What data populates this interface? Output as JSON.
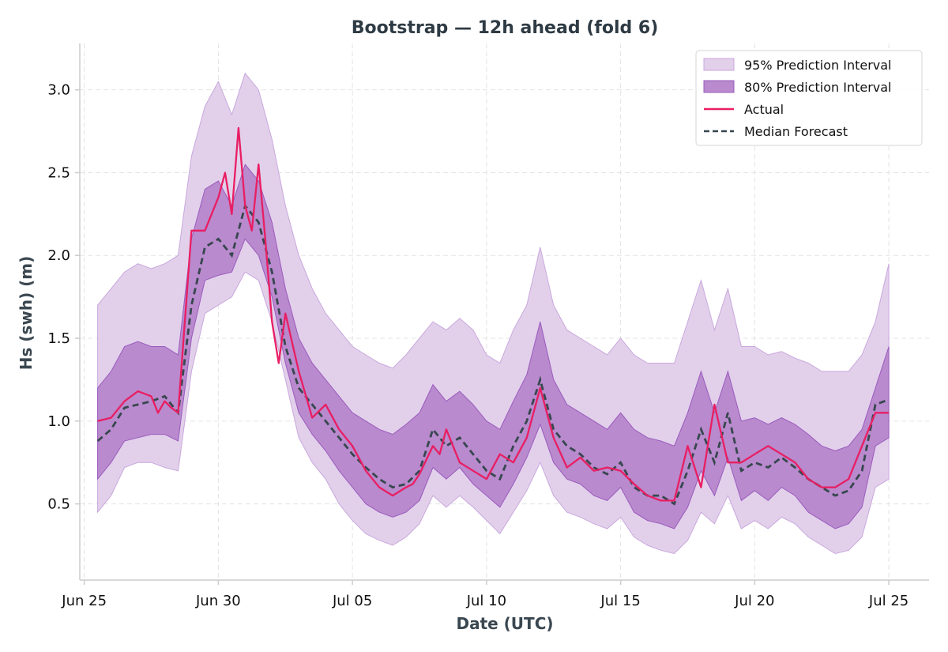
{
  "chart_data": {
    "type": "line",
    "title": "Bootstrap — 12h ahead (fold 6)",
    "xlabel": "Date (UTC)",
    "ylabel": "Hs (swh) (m)",
    "x_ticks": [
      {
        "date": "2025-06-25",
        "label": "Jun 25"
      },
      {
        "date": "2025-06-30",
        "label": "Jun 30"
      },
      {
        "date": "2025-07-05",
        "label": "Jul 05"
      },
      {
        "date": "2025-07-10",
        "label": "Jul 10"
      },
      {
        "date": "2025-07-15",
        "label": "Jul 15"
      },
      {
        "date": "2025-07-20",
        "label": "Jul 20"
      },
      {
        "date": "2025-07-25",
        "label": "Jul 25"
      }
    ],
    "y_ticks": [
      {
        "value": 0.5,
        "label": "0.5"
      },
      {
        "value": 1.0,
        "label": "1.0"
      },
      {
        "value": 1.5,
        "label": "1.5"
      },
      {
        "value": 2.0,
        "label": "2.0"
      },
      {
        "value": 2.5,
        "label": "2.5"
      },
      {
        "value": 3.0,
        "label": "3.0"
      }
    ],
    "xlim": [
      "2025-06-24T20:00",
      "2025-07-26T12:00"
    ],
    "ylim": [
      0.04,
      3.28
    ],
    "grid": true,
    "legend_position": "top-right",
    "colors": {
      "pi95_fill": "#e2d0eb",
      "pi95_edge": "#c9a7dd",
      "pi80_fill": "#b98acd",
      "pi80_edge": "#9a5bbd",
      "actual": "#e91e63",
      "median": "#37474f"
    },
    "legend": [
      {
        "key": "pi95",
        "label": "95% Prediction Interval"
      },
      {
        "key": "pi80",
        "label": "80% Prediction Interval"
      },
      {
        "key": "actual",
        "label": "Actual"
      },
      {
        "key": "median",
        "label": "Median Forecast"
      }
    ],
    "series": [
      {
        "name": "Actual",
        "x": [
          "2025-06-25T12:00",
          "2025-06-26T00:00",
          "2025-06-26T12:00",
          "2025-06-27T00:00",
          "2025-06-27T12:00",
          "2025-06-27T18:00",
          "2025-06-28T00:00",
          "2025-06-28T06:00",
          "2025-06-28T12:00",
          "2025-06-29T00:00",
          "2025-06-29T12:00",
          "2025-06-30T00:00",
          "2025-06-30T06:00",
          "2025-06-30T12:00",
          "2025-06-30T18:00",
          "2025-07-01T00:00",
          "2025-07-01T06:00",
          "2025-07-01T12:00",
          "2025-07-01T18:00",
          "2025-07-02T00:00",
          "2025-07-02T06:00",
          "2025-07-02T12:00",
          "2025-07-03T00:00",
          "2025-07-03T12:00",
          "2025-07-04T00:00",
          "2025-07-04T12:00",
          "2025-07-05T00:00",
          "2025-07-05T12:00",
          "2025-07-06T00:00",
          "2025-07-06T12:00",
          "2025-07-07T00:00",
          "2025-07-07T06:00",
          "2025-07-07T12:00",
          "2025-07-08T00:00",
          "2025-07-08T06:00",
          "2025-07-08T12:00",
          "2025-07-09T00:00",
          "2025-07-09T12:00",
          "2025-07-10T00:00",
          "2025-07-10T12:00",
          "2025-07-11T00:00",
          "2025-07-11T12:00",
          "2025-07-12T00:00",
          "2025-07-12T12:00",
          "2025-07-13T00:00",
          "2025-07-13T12:00",
          "2025-07-14T00:00",
          "2025-07-14T12:00",
          "2025-07-15T00:00",
          "2025-07-15T12:00",
          "2025-07-16T00:00",
          "2025-07-16T12:00",
          "2025-07-17T00:00",
          "2025-07-17T12:00",
          "2025-07-18T00:00",
          "2025-07-18T12:00",
          "2025-07-19T00:00",
          "2025-07-19T12:00",
          "2025-07-20T00:00",
          "2025-07-20T12:00",
          "2025-07-21T00:00",
          "2025-07-21T12:00",
          "2025-07-22T00:00",
          "2025-07-22T12:00",
          "2025-07-23T00:00",
          "2025-07-23T12:00",
          "2025-07-24T00:00",
          "2025-07-24T12:00",
          "2025-07-25T00:00"
        ],
        "values": [
          1.0,
          1.02,
          1.12,
          1.18,
          1.15,
          1.05,
          1.12,
          1.08,
          1.05,
          2.15,
          2.15,
          2.35,
          2.5,
          2.25,
          2.77,
          2.3,
          2.15,
          2.55,
          2.1,
          1.6,
          1.35,
          1.65,
          1.3,
          1.02,
          1.1,
          0.95,
          0.85,
          0.7,
          0.6,
          0.55,
          0.6,
          0.62,
          0.68,
          0.85,
          0.8,
          0.95,
          0.75,
          0.7,
          0.65,
          0.8,
          0.75,
          0.9,
          1.2,
          0.9,
          0.72,
          0.78,
          0.7,
          0.72,
          0.7,
          0.62,
          0.55,
          0.52,
          0.52,
          0.85,
          0.6,
          1.1,
          0.75,
          0.75,
          0.8,
          0.85,
          0.8,
          0.75,
          0.65,
          0.6,
          0.6,
          0.65,
          0.85,
          1.05,
          1.05
        ]
      },
      {
        "name": "Median Forecast",
        "x": [
          "2025-06-25T12:00",
          "2025-06-26T00:00",
          "2025-06-26T12:00",
          "2025-06-27T00:00",
          "2025-06-27T12:00",
          "2025-06-28T00:00",
          "2025-06-28T12:00",
          "2025-06-29T00:00",
          "2025-06-29T12:00",
          "2025-06-30T00:00",
          "2025-06-30T12:00",
          "2025-07-01T00:00",
          "2025-07-01T12:00",
          "2025-07-02T00:00",
          "2025-07-02T12:00",
          "2025-07-03T00:00",
          "2025-07-03T12:00",
          "2025-07-04T00:00",
          "2025-07-04T12:00",
          "2025-07-05T00:00",
          "2025-07-05T12:00",
          "2025-07-06T00:00",
          "2025-07-06T12:00",
          "2025-07-07T00:00",
          "2025-07-07T12:00",
          "2025-07-08T00:00",
          "2025-07-08T12:00",
          "2025-07-09T00:00",
          "2025-07-09T12:00",
          "2025-07-10T00:00",
          "2025-07-10T12:00",
          "2025-07-11T00:00",
          "2025-07-11T12:00",
          "2025-07-12T00:00",
          "2025-07-12T12:00",
          "2025-07-13T00:00",
          "2025-07-13T12:00",
          "2025-07-14T00:00",
          "2025-07-14T12:00",
          "2025-07-15T00:00",
          "2025-07-15T12:00",
          "2025-07-16T00:00",
          "2025-07-16T12:00",
          "2025-07-17T00:00",
          "2025-07-17T12:00",
          "2025-07-18T00:00",
          "2025-07-18T12:00",
          "2025-07-19T00:00",
          "2025-07-19T12:00",
          "2025-07-20T00:00",
          "2025-07-20T12:00",
          "2025-07-21T00:00",
          "2025-07-21T12:00",
          "2025-07-22T00:00",
          "2025-07-22T12:00",
          "2025-07-23T00:00",
          "2025-07-23T12:00",
          "2025-07-24T00:00",
          "2025-07-24T12:00",
          "2025-07-25T00:00"
        ],
        "values": [
          0.88,
          0.95,
          1.08,
          1.1,
          1.12,
          1.15,
          1.05,
          1.7,
          2.05,
          2.1,
          2.0,
          2.3,
          2.2,
          1.9,
          1.45,
          1.2,
          1.1,
          1.0,
          0.9,
          0.8,
          0.72,
          0.65,
          0.6,
          0.62,
          0.7,
          0.95,
          0.85,
          0.9,
          0.8,
          0.7,
          0.65,
          0.85,
          1.0,
          1.25,
          0.95,
          0.85,
          0.8,
          0.72,
          0.68,
          0.75,
          0.6,
          0.55,
          0.55,
          0.5,
          0.7,
          0.95,
          0.75,
          1.05,
          0.7,
          0.75,
          0.72,
          0.78,
          0.72,
          0.65,
          0.6,
          0.55,
          0.58,
          0.7,
          1.1,
          1.13
        ]
      }
    ],
    "intervals": [
      {
        "name": "95% Prediction Interval",
        "x": [
          "2025-06-25T12:00",
          "2025-06-26T00:00",
          "2025-06-26T12:00",
          "2025-06-27T00:00",
          "2025-06-27T12:00",
          "2025-06-28T00:00",
          "2025-06-28T12:00",
          "2025-06-29T00:00",
          "2025-06-29T12:00",
          "2025-06-30T00:00",
          "2025-06-30T12:00",
          "2025-07-01T00:00",
          "2025-07-01T12:00",
          "2025-07-02T00:00",
          "2025-07-02T12:00",
          "2025-07-03T00:00",
          "2025-07-03T12:00",
          "2025-07-04T00:00",
          "2025-07-04T12:00",
          "2025-07-05T00:00",
          "2025-07-05T12:00",
          "2025-07-06T00:00",
          "2025-07-06T12:00",
          "2025-07-07T00:00",
          "2025-07-07T12:00",
          "2025-07-08T00:00",
          "2025-07-08T12:00",
          "2025-07-09T00:00",
          "2025-07-09T12:00",
          "2025-07-10T00:00",
          "2025-07-10T12:00",
          "2025-07-11T00:00",
          "2025-07-11T12:00",
          "2025-07-12T00:00",
          "2025-07-12T12:00",
          "2025-07-13T00:00",
          "2025-07-13T12:00",
          "2025-07-14T00:00",
          "2025-07-14T12:00",
          "2025-07-15T00:00",
          "2025-07-15T12:00",
          "2025-07-16T00:00",
          "2025-07-16T12:00",
          "2025-07-17T00:00",
          "2025-07-17T12:00",
          "2025-07-18T00:00",
          "2025-07-18T12:00",
          "2025-07-19T00:00",
          "2025-07-19T12:00",
          "2025-07-20T00:00",
          "2025-07-20T12:00",
          "2025-07-21T00:00",
          "2025-07-21T12:00",
          "2025-07-22T00:00",
          "2025-07-22T12:00",
          "2025-07-23T00:00",
          "2025-07-23T12:00",
          "2025-07-24T00:00",
          "2025-07-24T12:00",
          "2025-07-25T00:00"
        ],
        "lower": [
          0.45,
          0.55,
          0.72,
          0.75,
          0.75,
          0.72,
          0.7,
          1.3,
          1.65,
          1.7,
          1.75,
          1.9,
          1.85,
          1.6,
          1.25,
          0.9,
          0.75,
          0.65,
          0.5,
          0.4,
          0.32,
          0.28,
          0.25,
          0.3,
          0.38,
          0.55,
          0.48,
          0.55,
          0.48,
          0.4,
          0.32,
          0.45,
          0.58,
          0.75,
          0.55,
          0.45,
          0.42,
          0.38,
          0.35,
          0.42,
          0.3,
          0.25,
          0.22,
          0.2,
          0.28,
          0.45,
          0.38,
          0.55,
          0.35,
          0.4,
          0.35,
          0.42,
          0.38,
          0.3,
          0.25,
          0.2,
          0.22,
          0.3,
          0.6,
          0.65
        ],
        "upper": [
          1.7,
          1.8,
          1.9,
          1.95,
          1.92,
          1.95,
          2.0,
          2.6,
          2.9,
          3.05,
          2.85,
          3.1,
          3.0,
          2.7,
          2.3,
          2.0,
          1.8,
          1.65,
          1.55,
          1.45,
          1.4,
          1.35,
          1.32,
          1.4,
          1.5,
          1.6,
          1.55,
          1.62,
          1.55,
          1.4,
          1.35,
          1.55,
          1.7,
          2.05,
          1.7,
          1.55,
          1.5,
          1.45,
          1.4,
          1.5,
          1.4,
          1.35,
          1.35,
          1.35,
          1.6,
          1.85,
          1.55,
          1.8,
          1.45,
          1.45,
          1.4,
          1.42,
          1.38,
          1.35,
          1.3,
          1.3,
          1.3,
          1.4,
          1.6,
          1.95
        ]
      },
      {
        "name": "80% Prediction Interval",
        "x": [
          "2025-06-25T12:00",
          "2025-06-26T00:00",
          "2025-06-26T12:00",
          "2025-06-27T00:00",
          "2025-06-27T12:00",
          "2025-06-28T00:00",
          "2025-06-28T12:00",
          "2025-06-29T00:00",
          "2025-06-29T12:00",
          "2025-06-30T00:00",
          "2025-06-30T12:00",
          "2025-07-01T00:00",
          "2025-07-01T12:00",
          "2025-07-02T00:00",
          "2025-07-02T12:00",
          "2025-07-03T00:00",
          "2025-07-03T12:00",
          "2025-07-04T00:00",
          "2025-07-04T12:00",
          "2025-07-05T00:00",
          "2025-07-05T12:00",
          "2025-07-06T00:00",
          "2025-07-06T12:00",
          "2025-07-07T00:00",
          "2025-07-07T12:00",
          "2025-07-08T00:00",
          "2025-07-08T12:00",
          "2025-07-09T00:00",
          "2025-07-09T12:00",
          "2025-07-10T00:00",
          "2025-07-10T12:00",
          "2025-07-11T00:00",
          "2025-07-11T12:00",
          "2025-07-12T00:00",
          "2025-07-12T12:00",
          "2025-07-13T00:00",
          "2025-07-13T12:00",
          "2025-07-14T00:00",
          "2025-07-14T12:00",
          "2025-07-15T00:00",
          "2025-07-15T12:00",
          "2025-07-16T00:00",
          "2025-07-16T12:00",
          "2025-07-17T00:00",
          "2025-07-17T12:00",
          "2025-07-18T00:00",
          "2025-07-18T12:00",
          "2025-07-19T00:00",
          "2025-07-19T12:00",
          "2025-07-20T00:00",
          "2025-07-20T12:00",
          "2025-07-21T00:00",
          "2025-07-21T12:00",
          "2025-07-22T00:00",
          "2025-07-22T12:00",
          "2025-07-23T00:00",
          "2025-07-23T12:00",
          "2025-07-24T00:00",
          "2025-07-24T12:00",
          "2025-07-25T00:00"
        ],
        "lower": [
          0.65,
          0.75,
          0.88,
          0.9,
          0.92,
          0.92,
          0.88,
          1.5,
          1.85,
          1.88,
          1.9,
          2.1,
          2.0,
          1.75,
          1.35,
          1.05,
          0.92,
          0.82,
          0.7,
          0.6,
          0.5,
          0.45,
          0.42,
          0.45,
          0.52,
          0.72,
          0.65,
          0.72,
          0.62,
          0.55,
          0.48,
          0.62,
          0.78,
          0.98,
          0.75,
          0.65,
          0.62,
          0.55,
          0.52,
          0.6,
          0.45,
          0.4,
          0.38,
          0.35,
          0.48,
          0.7,
          0.55,
          0.78,
          0.52,
          0.58,
          0.52,
          0.6,
          0.55,
          0.45,
          0.4,
          0.35,
          0.38,
          0.48,
          0.85,
          0.9
        ],
        "upper": [
          1.2,
          1.3,
          1.45,
          1.48,
          1.45,
          1.45,
          1.4,
          2.1,
          2.4,
          2.45,
          2.3,
          2.55,
          2.45,
          2.2,
          1.8,
          1.5,
          1.35,
          1.25,
          1.15,
          1.05,
          1.0,
          0.95,
          0.92,
          0.98,
          1.05,
          1.22,
          1.12,
          1.18,
          1.1,
          1.0,
          0.95,
          1.12,
          1.28,
          1.6,
          1.25,
          1.1,
          1.05,
          1.0,
          0.95,
          1.05,
          0.95,
          0.9,
          0.88,
          0.85,
          1.05,
          1.3,
          1.05,
          1.3,
          1.0,
          1.02,
          0.98,
          1.02,
          0.98,
          0.92,
          0.85,
          0.82,
          0.85,
          0.95,
          1.2,
          1.45
        ]
      }
    ]
  }
}
